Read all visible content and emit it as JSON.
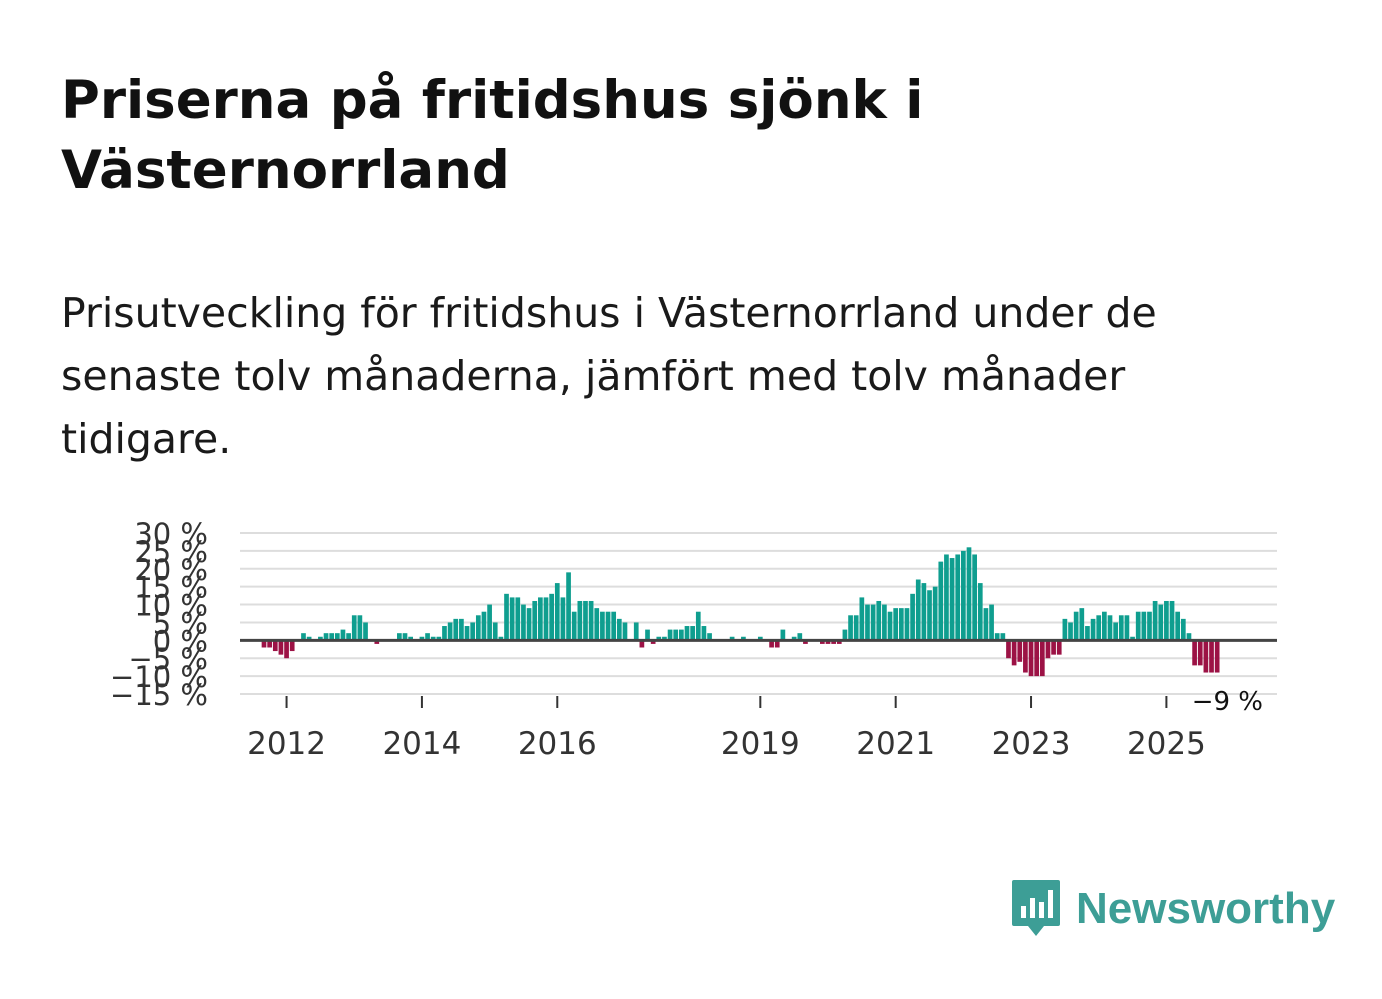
{
  "title": "Priserna på fritidshus sjönk i Västernorrland",
  "subtitle": "Prisutveckling för fritidshus i Västernorrland under de senaste tolv månaderna, jämfört med tolv månader tidigare.",
  "brand": {
    "name": "Newsworthy"
  },
  "colors": {
    "positive": "#0f9e8f",
    "negative": "#9c1245",
    "grid": "#dddddd",
    "zero": "#444444",
    "brand": "#3d9e96"
  },
  "chart_data": {
    "type": "bar",
    "title": "",
    "xlabel": "",
    "ylabel": "",
    "ylim": [
      -15,
      30
    ],
    "yticks": [
      -15,
      -10,
      -5,
      0,
      5,
      10,
      15,
      20,
      25,
      30
    ],
    "ytick_labels": [
      "−15 %",
      "−10 %",
      "−5 %",
      "0 %",
      "5 %",
      "10 %",
      "15 %",
      "20 %",
      "25 %",
      "30 %"
    ],
    "xticks": [
      {
        "label": "2012",
        "index": 4
      },
      {
        "label": "2014",
        "index": 28
      },
      {
        "label": "2016",
        "index": 52
      },
      {
        "label": "2019",
        "index": 88
      },
      {
        "label": "2021",
        "index": 112
      },
      {
        "label": "2023",
        "index": 136
      },
      {
        "label": "2025",
        "index": 160
      }
    ],
    "end_label": "−9 %",
    "start": "2011-05",
    "end": "2025-10",
    "values": [
      -2,
      -2,
      -3,
      -4,
      -5,
      -3,
      0,
      2,
      1,
      0,
      1,
      2,
      2,
      2,
      3,
      2,
      7,
      7,
      5,
      0,
      -1,
      0,
      0,
      0,
      2,
      2,
      1,
      0,
      1,
      2,
      1,
      1,
      4,
      5,
      6,
      6,
      4,
      5,
      7,
      8,
      10,
      5,
      1,
      13,
      12,
      12,
      10,
      9,
      11,
      12,
      12,
      13,
      16,
      12,
      19,
      8,
      11,
      11,
      11,
      9,
      8,
      8,
      8,
      6,
      5,
      0,
      5,
      -2,
      3,
      -1,
      1,
      1,
      3,
      3,
      3,
      4,
      4,
      8,
      4,
      2,
      0,
      0,
      0,
      1,
      0,
      1,
      0,
      0,
      1,
      0,
      -2,
      -2,
      3,
      0,
      1,
      2,
      -1,
      0,
      0,
      -1,
      -1,
      -1,
      -1,
      3,
      7,
      7,
      12,
      10,
      10,
      11,
      10,
      8,
      9,
      9,
      9,
      13,
      17,
      16,
      14,
      15,
      22,
      24,
      23,
      24,
      25,
      26,
      24,
      16,
      9,
      10,
      2,
      2,
      -5,
      -7,
      -6,
      -9,
      -10,
      -10,
      -10,
      -5,
      -4,
      -4,
      6,
      5,
      8,
      9,
      4,
      6,
      7,
      8,
      7,
      5,
      7,
      7,
      1,
      8,
      8,
      8,
      11,
      10,
      11,
      11,
      8,
      6,
      2,
      -7,
      -7,
      -9,
      -9,
      -9
    ]
  }
}
